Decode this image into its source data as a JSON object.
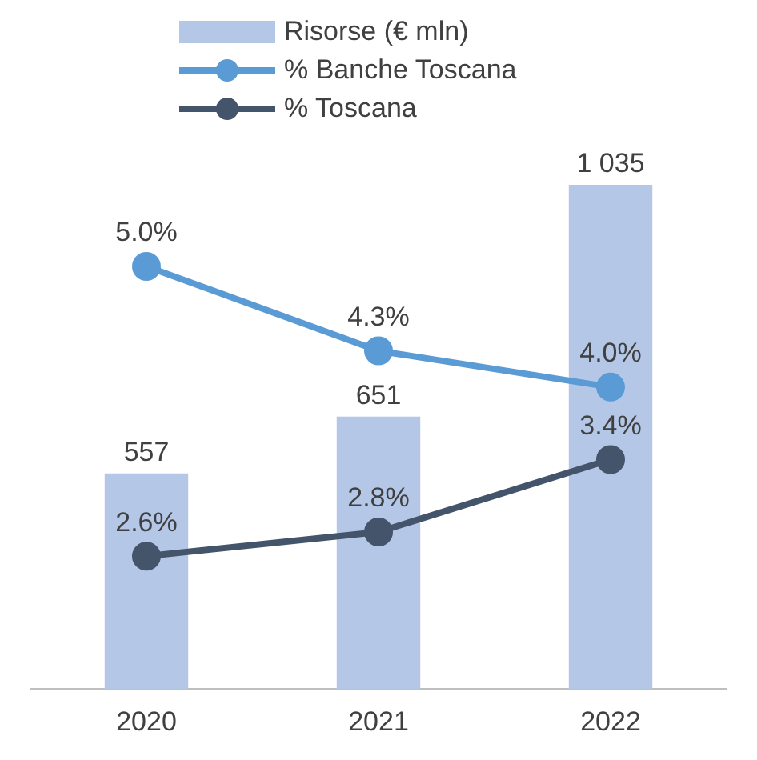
{
  "chart_data": {
    "type": "bar",
    "categories": [
      "2020",
      "2021",
      "2022"
    ],
    "series": [
      {
        "name": "Risorse (€ mln)",
        "color": "#b4c7e7",
        "values": [
          557,
          651,
          1035
        ],
        "value_labels": [
          "557",
          "651",
          "1 035"
        ]
      },
      {
        "name": "% Banche Toscana",
        "type": "line",
        "axis": "y2",
        "color": "#5b9bd5",
        "values": [
          5.0,
          4.3,
          4.0
        ],
        "value_labels": [
          "5.0%",
          "4.3%",
          "4.0%"
        ]
      },
      {
        "name": "% Toscana",
        "type": "line",
        "axis": "y2",
        "color": "#44546a",
        "values": [
          2.6,
          2.8,
          3.4
        ],
        "value_labels": [
          "2.6%",
          "2.8%",
          "3.4%"
        ]
      }
    ],
    "tick_labels": "x",
    "grid": false,
    "legend": "top",
    "marker": "circle"
  }
}
